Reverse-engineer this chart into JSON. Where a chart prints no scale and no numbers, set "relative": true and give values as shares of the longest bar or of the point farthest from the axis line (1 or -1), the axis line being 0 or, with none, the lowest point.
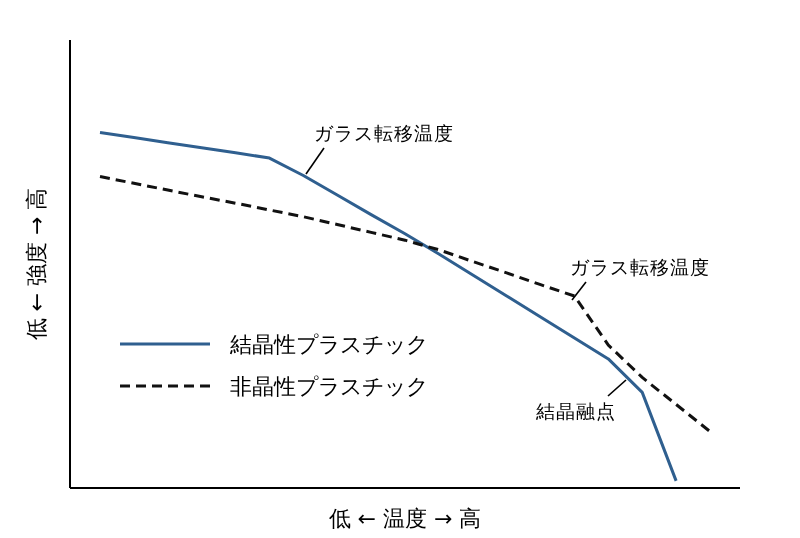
{
  "chart_data": {
    "type": "line",
    "relative": true,
    "xlabel": "低 ← 温度 → 高",
    "ylabel": "低 ← 強度 → 高",
    "legend": "left",
    "categories": [
      null,
      null,
      null,
      null,
      null,
      null,
      null,
      null,
      null,
      null,
      null,
      null,
      null,
      null,
      null,
      null,
      null,
      null,
      null
    ],
    "series": [
      {
        "name": "結晶性プラスチック",
        "color": "#2f5f8f",
        "line_style": "solid",
        "values": [
          1,
          0.986,
          0.971,
          0.957,
          0.943,
          0.928,
          0.879,
          0.824,
          0.769,
          0.715,
          0.658,
          0.599,
          0.54,
          0.481,
          0.422,
          0.363,
          0.269,
          0.02,
          null
        ]
      },
      {
        "name": "非晶性プラスチック",
        "color": "#111111",
        "line_style": "dashed",
        "values": [
          0.876,
          0.857,
          0.838,
          0.819,
          0.801,
          0.782,
          0.763,
          0.741,
          0.719,
          0.697,
          0.67,
          0.637,
          0.605,
          0.572,
          0.54,
          0.402,
          0.311,
          0.235,
          0.159
        ]
      }
    ],
    "annotations": [
      "ガラス転移温度",
      "ガラス転移温度",
      "結晶融点"
    ]
  }
}
